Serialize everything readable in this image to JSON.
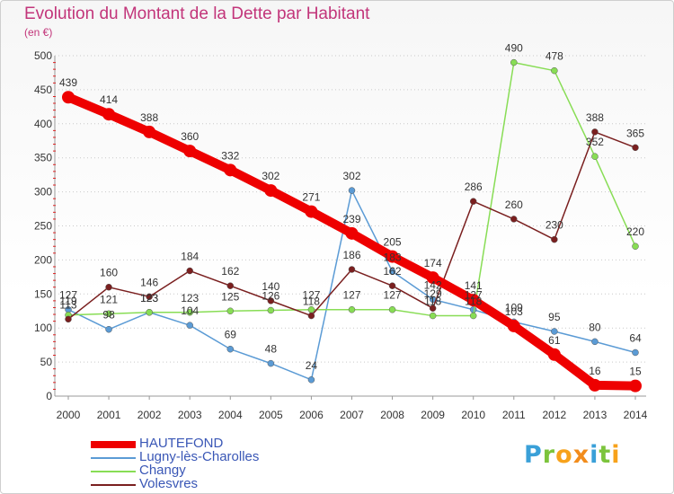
{
  "title": "Evolution du Montant de la Dette par Habitant",
  "subtitle": "(en €)",
  "logo_text": "Proxiti",
  "chart_data": {
    "type": "line",
    "title": "Evolution du Montant de la Dette par Habitant",
    "subtitle": "(en €)",
    "x": [
      "2000",
      "2001",
      "2002",
      "2003",
      "2004",
      "2005",
      "2006",
      "2007",
      "2008",
      "2009",
      "2010",
      "2011",
      "2012",
      "2013",
      "2014"
    ],
    "ylim": [
      0,
      500
    ],
    "yticks": [
      0,
      50,
      100,
      150,
      200,
      250,
      300,
      350,
      400,
      450,
      500
    ],
    "grid": "horizontal dotted",
    "legend_position": "bottom-left",
    "series": [
      {
        "name": "HAUTEFOND",
        "color": "#ee0000",
        "values": [
          439,
          414,
          388,
          360,
          332,
          302,
          271,
          239,
          205,
          174,
          141,
          103,
          61,
          16,
          15
        ]
      },
      {
        "name": "Lugny-lès-Charolles",
        "color": "#5b9bd5",
        "values": [
          127,
          98,
          123,
          104,
          69,
          48,
          24,
          302,
          183,
          142,
          127,
          109,
          95,
          80,
          64
        ]
      },
      {
        "name": "Changy",
        "color": "#88dd55",
        "values": [
          119,
          121,
          123,
          123,
          125,
          126,
          127,
          127,
          127,
          118,
          118,
          490,
          478,
          352,
          220
        ]
      },
      {
        "name": "Volesvres",
        "color": "#7a1f1f",
        "values": [
          113,
          160,
          146,
          184,
          162,
          140,
          118,
          186,
          162,
          129,
          286,
          260,
          230,
          388,
          365
        ]
      }
    ],
    "data_labels": [
      {
        "series": 0,
        "labels": [
          "439",
          "414",
          "388",
          "360",
          "332",
          "302",
          "271",
          "239",
          "205",
          "174",
          "141",
          "103",
          "61",
          "16",
          "15"
        ]
      },
      {
        "series": 1,
        "labels": [
          "127",
          "98",
          "123",
          "104",
          "69",
          "48",
          "24",
          "302",
          "183",
          "142",
          "127",
          "109",
          "95",
          "80",
          "64"
        ]
      },
      {
        "series": 2,
        "labels": [
          "119",
          "121",
          "123",
          "123",
          "125",
          "126",
          "127",
          "127",
          "127",
          "118",
          "118",
          "490",
          "478",
          "352",
          "220"
        ]
      },
      {
        "series": 3,
        "labels": [
          "113",
          "160",
          "146",
          "184",
          "162",
          "140",
          "118",
          "186",
          "162",
          "129",
          "286",
          "260",
          "230",
          "388",
          "365"
        ]
      }
    ]
  }
}
